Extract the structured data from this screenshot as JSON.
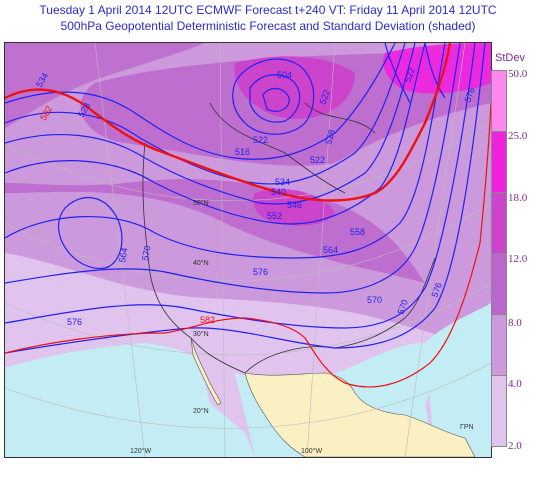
{
  "header": {
    "line1": "Tuesday 1 April 2014 12UTC ECMWF Forecast t+240  VT: Friday 11 April 2014 12UTC",
    "line2": "500hPa Geopotential Deterministic Forecast and Standard Deviation (shaded)"
  },
  "legend": {
    "title": "StDev",
    "bins": [
      {
        "label": "50.0",
        "color": "#ff88ee"
      },
      {
        "label": "25.0",
        "color": "#ee22dd"
      },
      {
        "label": "18.0",
        "color": "#cc44cc"
      },
      {
        "label": "12.0",
        "color": "#bb66cc"
      },
      {
        "label": "8.0",
        "color": "#cc99dd"
      },
      {
        "label": "4.0",
        "color": "#e0c4ee"
      },
      {
        "label": "2.0",
        "color": "#ffffff"
      }
    ]
  },
  "map": {
    "colors": {
      "contour_blue": "#2222ee",
      "contour_red": "#ee1111",
      "ocean": "#c4ecf4",
      "land_mexico": "#fbf0c4",
      "grid": "#bbbbbb"
    },
    "contour_labels": [
      "534",
      "528",
      "522",
      "522",
      "522",
      "522",
      "516",
      "564",
      "570",
      "576",
      "582",
      "546",
      "540",
      "534",
      "552",
      "558",
      "564",
      "570",
      "576",
      "582",
      "570",
      "576",
      "576",
      "528",
      "504"
    ],
    "lat_labels": [
      "50°N",
      "40°N",
      "30°N",
      "20°N"
    ],
    "lon_labels": [
      "120°W",
      "100°W"
    ],
    "corner_label": "ΓΡΝ"
  }
}
